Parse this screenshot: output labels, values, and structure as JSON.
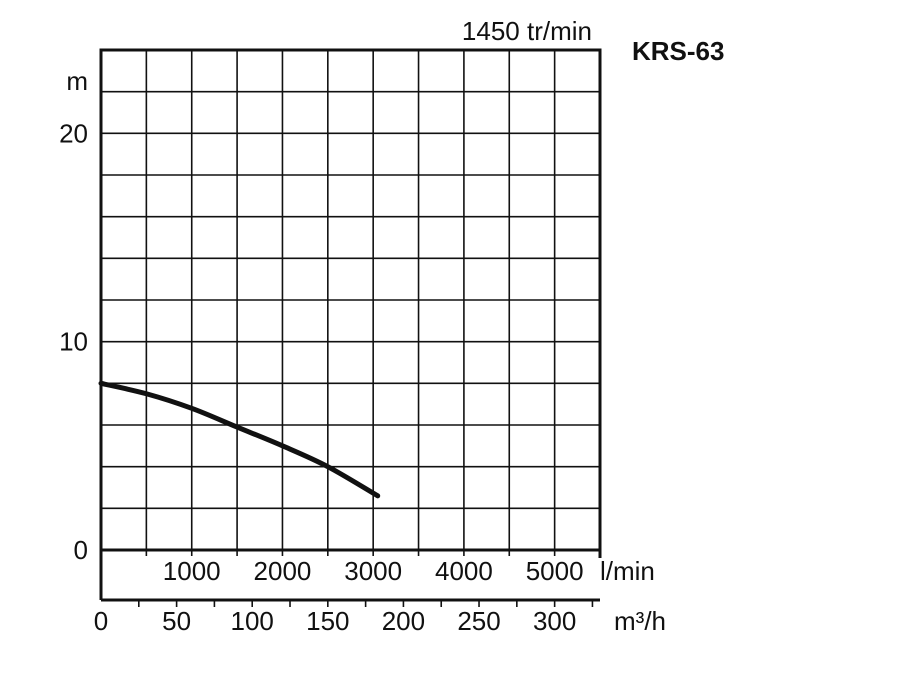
{
  "chart_data": {
    "type": "line",
    "title": "KRS-63",
    "speed_label": "1450 tr/min",
    "ylabel": "m",
    "ylim": [
      0,
      24
    ],
    "y_ticks": [
      0,
      10,
      20
    ],
    "x_primary": {
      "unit": "l/min",
      "range": [
        0,
        5500
      ],
      "ticks": [
        1000,
        2000,
        3000,
        4000,
        5000
      ]
    },
    "x_secondary": {
      "unit": "m³/h",
      "range": [
        0,
        330
      ],
      "ticks": [
        0,
        50,
        100,
        150,
        200,
        250,
        300
      ]
    },
    "grid": true,
    "series": [
      {
        "x": [
          0,
          500,
          1000,
          1500,
          2000,
          2500,
          3050
        ],
        "y": [
          8.0,
          7.5,
          6.8,
          5.9,
          5.0,
          4.0,
          2.6
        ]
      }
    ]
  }
}
